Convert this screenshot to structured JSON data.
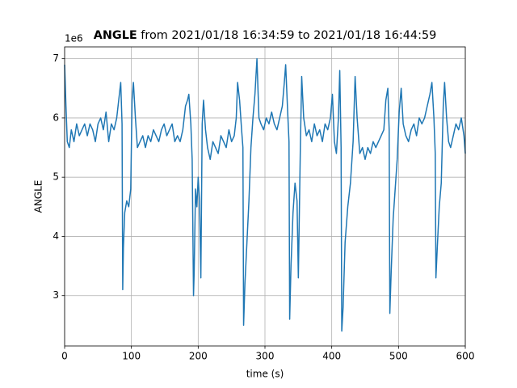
{
  "chart_data": {
    "type": "line",
    "title_bold": "ANGLE",
    "title_rest": "from 2021/01/18 16:34:59 to 2021/01/18 16:44:59",
    "xlabel": "time (s)",
    "ylabel": "ANGLE",
    "y_offset_text": "1e6",
    "color": "#1f77b4",
    "grid": true,
    "xlim": [
      0,
      600
    ],
    "ylim": [
      2.15,
      7.2
    ],
    "xticks": [
      0,
      100,
      200,
      300,
      400,
      500,
      600
    ],
    "yticks": [
      3,
      4,
      5,
      6,
      7
    ],
    "x": [
      0,
      2,
      4,
      7,
      10,
      14,
      18,
      22,
      26,
      30,
      34,
      38,
      42,
      46,
      50,
      54,
      58,
      62,
      66,
      70,
      74,
      78,
      81,
      84,
      86,
      87,
      88,
      90,
      93,
      96,
      99,
      101,
      103,
      106,
      109,
      113,
      117,
      121,
      125,
      129,
      133,
      137,
      141,
      145,
      149,
      153,
      157,
      161,
      165,
      169,
      173,
      177,
      181,
      184,
      186,
      189,
      191,
      193,
      194,
      196,
      198,
      200,
      202,
      204,
      206,
      208,
      211,
      214,
      218,
      222,
      226,
      230,
      234,
      238,
      242,
      246,
      250,
      254,
      257,
      259,
      262,
      265,
      267,
      268,
      270,
      273,
      276,
      279,
      282,
      285,
      288,
      291,
      294,
      298,
      302,
      306,
      310,
      314,
      318,
      322,
      326,
      329,
      331,
      334,
      336,
      337,
      339,
      342,
      345,
      348,
      350,
      353,
      355,
      358,
      362,
      366,
      370,
      374,
      378,
      382,
      386,
      390,
      394,
      398,
      401,
      404,
      407,
      410,
      412,
      414,
      415,
      417,
      420,
      424,
      428,
      432,
      435,
      438,
      442,
      446,
      450,
      454,
      458,
      462,
      466,
      470,
      474,
      478,
      481,
      484,
      486,
      487,
      489,
      492,
      495,
      498,
      501,
      504,
      507,
      511,
      515,
      519,
      523,
      527,
      531,
      535,
      539,
      543,
      547,
      550,
      553,
      555,
      556,
      558,
      561,
      564,
      567,
      569,
      572,
      575,
      578,
      582,
      586,
      590,
      594,
      598,
      600
    ],
    "values": [
      6.9,
      6.2,
      5.6,
      5.5,
      5.8,
      5.6,
      5.9,
      5.7,
      5.8,
      5.9,
      5.7,
      5.9,
      5.8,
      5.6,
      5.9,
      6.0,
      5.8,
      6.1,
      5.6,
      5.9,
      5.8,
      6.0,
      6.3,
      6.6,
      5.9,
      3.1,
      3.8,
      4.4,
      4.6,
      4.5,
      4.8,
      6.3,
      6.6,
      6.0,
      5.5,
      5.6,
      5.7,
      5.5,
      5.7,
      5.6,
      5.8,
      5.7,
      5.6,
      5.8,
      5.9,
      5.7,
      5.8,
      5.9,
      5.6,
      5.7,
      5.6,
      5.8,
      6.2,
      6.3,
      6.4,
      5.9,
      5.3,
      3.0,
      3.4,
      4.8,
      4.5,
      5.0,
      4.6,
      3.3,
      5.9,
      6.3,
      5.8,
      5.5,
      5.3,
      5.6,
      5.5,
      5.4,
      5.7,
      5.6,
      5.5,
      5.8,
      5.6,
      5.7,
      6.0,
      6.6,
      6.3,
      5.8,
      5.5,
      2.5,
      3.2,
      3.9,
      4.6,
      5.5,
      6.0,
      6.4,
      7.0,
      6.0,
      5.9,
      5.8,
      6.0,
      5.9,
      6.1,
      5.9,
      5.8,
      6.0,
      6.2,
      6.6,
      6.9,
      6.1,
      5.6,
      2.6,
      3.5,
      4.4,
      4.9,
      4.6,
      3.3,
      5.5,
      6.7,
      6.0,
      5.7,
      5.8,
      5.6,
      5.9,
      5.7,
      5.8,
      5.6,
      5.9,
      5.8,
      6.0,
      6.4,
      5.6,
      5.4,
      6.0,
      6.8,
      5.5,
      2.4,
      2.8,
      3.9,
      4.5,
      4.9,
      5.6,
      6.7,
      6.0,
      5.4,
      5.5,
      5.3,
      5.5,
      5.4,
      5.6,
      5.5,
      5.6,
      5.7,
      5.8,
      6.3,
      6.5,
      5.8,
      2.7,
      3.4,
      4.3,
      4.8,
      5.3,
      6.1,
      6.5,
      5.9,
      5.7,
      5.6,
      5.8,
      5.9,
      5.7,
      6.0,
      5.9,
      6.0,
      6.2,
      6.4,
      6.6,
      6.0,
      5.4,
      3.3,
      3.8,
      4.5,
      4.9,
      6.2,
      6.6,
      6.0,
      5.6,
      5.5,
      5.7,
      5.9,
      5.8,
      6.0,
      5.7,
      5.4
    ]
  }
}
